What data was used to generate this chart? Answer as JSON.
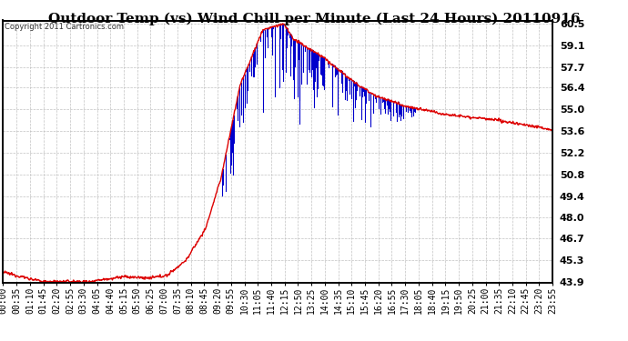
{
  "title": "Outdoor Temp (vs) Wind Chill per Minute (Last 24 Hours) 20110916",
  "copyright": "Copyright 2011 Cartronics.com",
  "ylabel_ticks": [
    43.9,
    45.3,
    46.7,
    48.0,
    49.4,
    50.8,
    52.2,
    53.6,
    55.0,
    56.4,
    57.7,
    59.1,
    60.5
  ],
  "ymin": 43.9,
  "ymax": 60.5,
  "bg_color": "#ffffff",
  "plot_bg_color": "#ffffff",
  "grid_color": "#bbbbbb",
  "line_color_temp": "#dd0000",
  "line_color_wind": "#0000cc",
  "title_fontsize": 11,
  "tick_label_fontsize": 7,
  "x_tick_labels": [
    "00:00",
    "00:35",
    "01:10",
    "01:45",
    "02:20",
    "02:55",
    "03:30",
    "04:05",
    "04:40",
    "05:15",
    "05:50",
    "06:25",
    "07:00",
    "07:35",
    "08:10",
    "08:45",
    "09:20",
    "09:55",
    "10:30",
    "11:05",
    "11:40",
    "12:15",
    "12:50",
    "13:25",
    "14:00",
    "14:35",
    "15:10",
    "15:45",
    "16:20",
    "16:55",
    "17:30",
    "18:05",
    "18:40",
    "19:15",
    "19:50",
    "20:25",
    "21:00",
    "21:35",
    "22:10",
    "22:45",
    "23:20",
    "23:55"
  ]
}
